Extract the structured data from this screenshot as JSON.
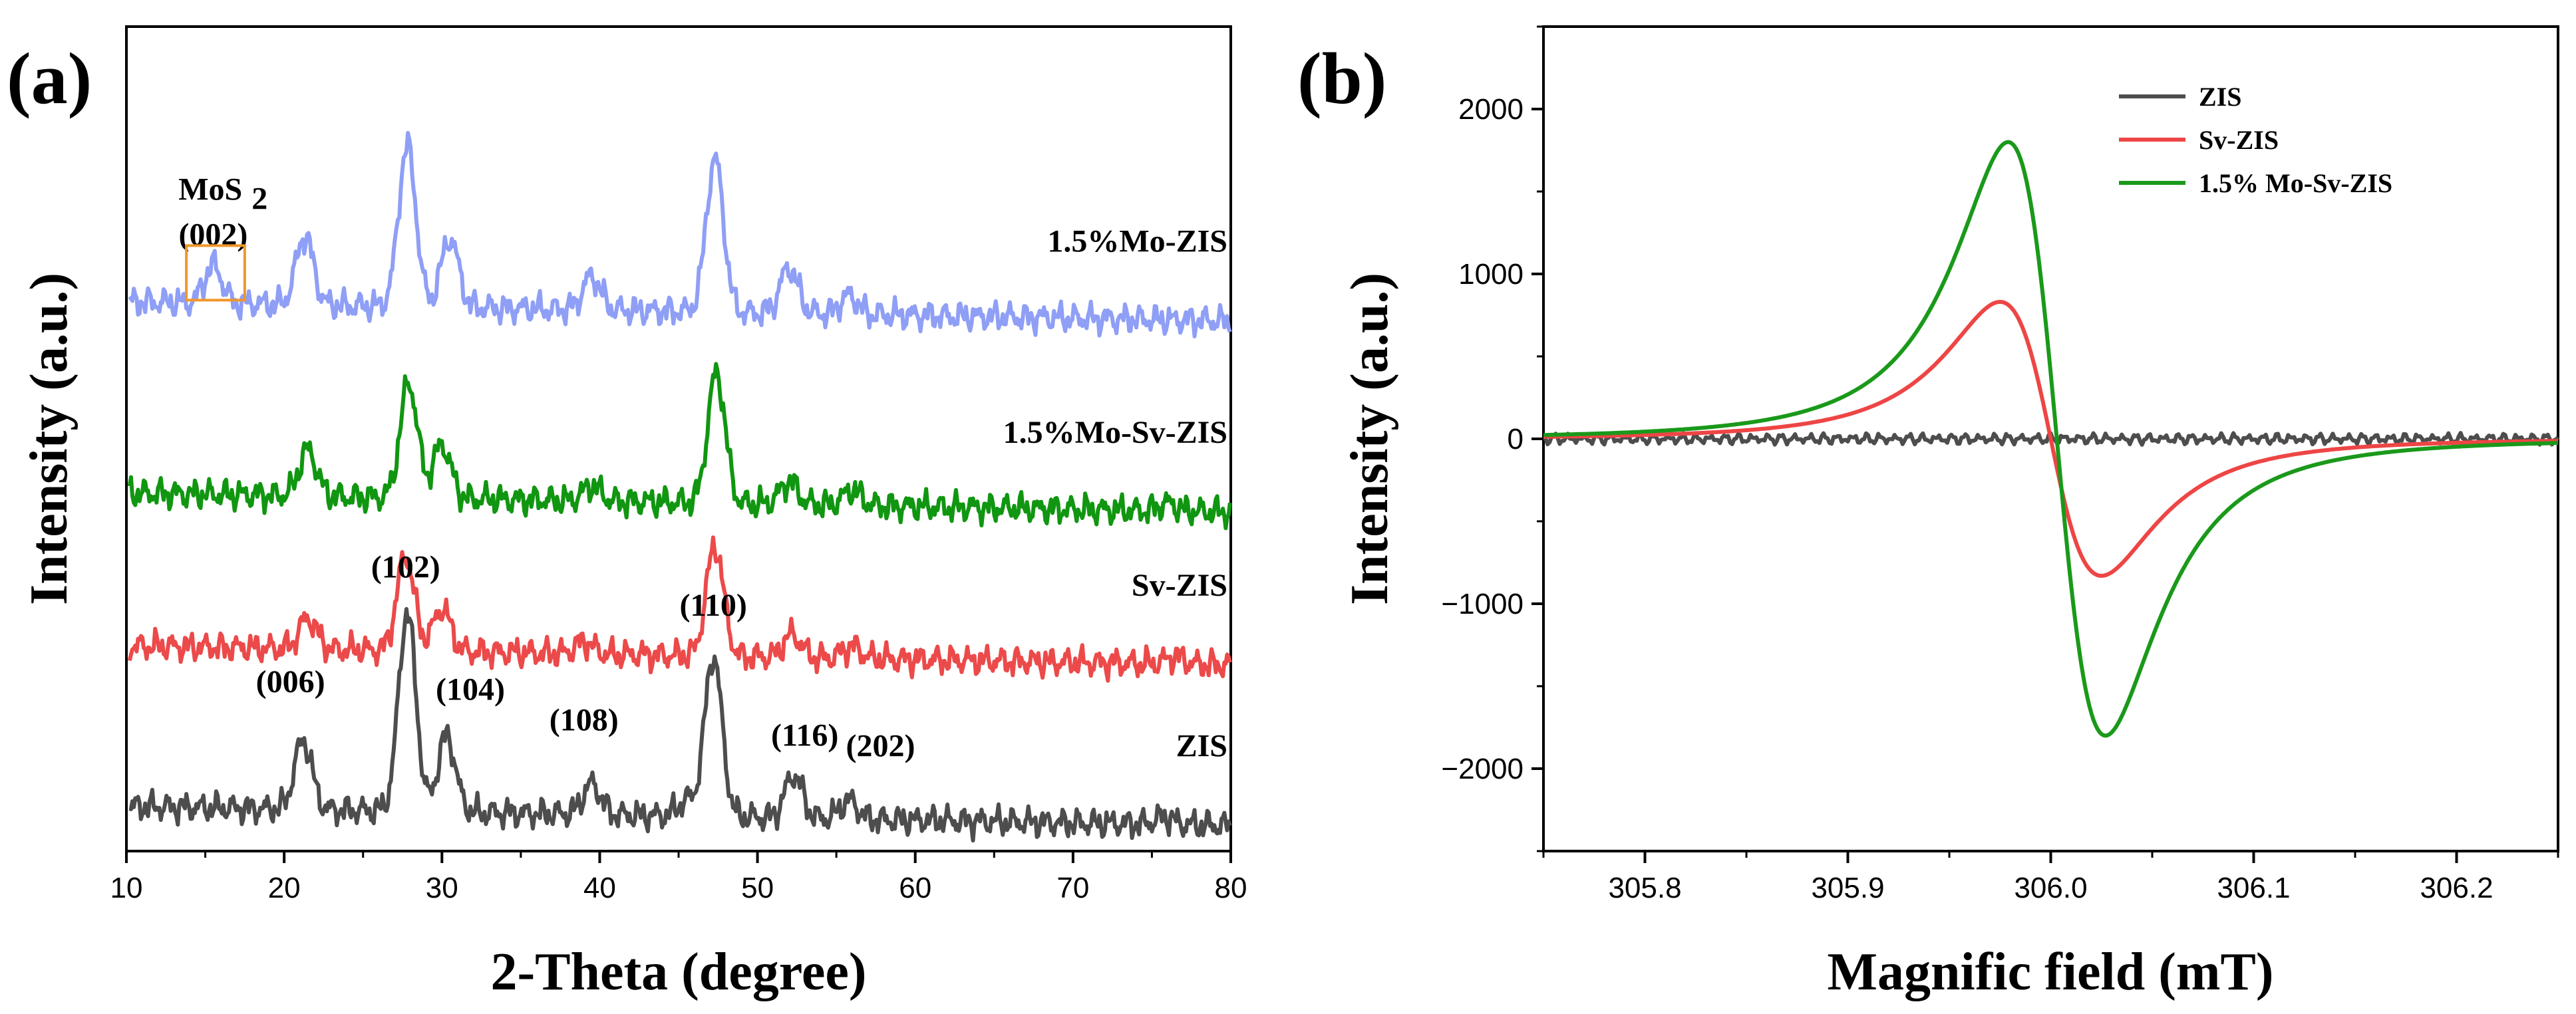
{
  "chart_data": [
    {
      "id": "a",
      "panel_label": "(a)",
      "type": "line",
      "xlabel": "2-Theta (degree)",
      "ylabel": "Intensity (a.u.)",
      "xlim": [
        10,
        80
      ],
      "xticks": [
        "10",
        "20",
        "30",
        "40",
        "50",
        "60",
        "70",
        "80"
      ],
      "series": [
        {
          "name": "1.5%Mo-ZIS",
          "color": "#8f9ff6",
          "baseline": 3.3,
          "peaks": [
            [
              15.5,
              0.25
            ],
            [
              21.3,
              0.45
            ],
            [
              27.8,
              1.05
            ],
            [
              30.5,
              0.45
            ],
            [
              39.5,
              0.22
            ],
            [
              47.3,
              1.0
            ],
            [
              52.0,
              0.3
            ],
            [
              55.8,
              0.12
            ]
          ]
        },
        {
          "name": "1.5%Mo-Sv-ZIS",
          "color": "#119611",
          "baseline": 2.05,
          "peaks": [
            [
              21.5,
              0.3
            ],
            [
              27.9,
              0.75
            ],
            [
              30.0,
              0.35
            ],
            [
              39.5,
              0.1
            ],
            [
              47.4,
              0.85
            ],
            [
              52.0,
              0.15
            ],
            [
              56.0,
              0.1
            ],
            [
              76.0,
              0.05
            ]
          ]
        },
        {
          "name": "Sv-ZIS",
          "color": "#ec4a4a",
          "baseline": 1.05,
          "peaks": [
            [
              21.5,
              0.2
            ],
            [
              27.7,
              0.62
            ],
            [
              30.0,
              0.28
            ],
            [
              39.0,
              0.08
            ],
            [
              47.3,
              0.72
            ],
            [
              52.2,
              0.15
            ],
            [
              56.0,
              0.08
            ],
            [
              76.5,
              0.05
            ]
          ]
        },
        {
          "name": "ZIS",
          "color": "#4d4d4d",
          "baseline": 0.0,
          "peaks": [
            [
              21.2,
              0.45
            ],
            [
              27.8,
              1.3
            ],
            [
              30.3,
              0.5
            ],
            [
              39.5,
              0.2
            ],
            [
              45.5,
              0.1
            ],
            [
              47.2,
              1.05
            ],
            [
              52.3,
              0.28
            ],
            [
              55.8,
              0.12
            ],
            [
              75.8,
              0.05
            ]
          ]
        }
      ],
      "annotations": {
        "mos2_main": "MoS",
        "mos2_sub": "2",
        "mos2_hkl": "(002)",
        "hkl": [
          "(102)",
          "(006)",
          "(104)",
          "(108)",
          "(110)",
          "(116)",
          "(202)"
        ],
        "hkl_x": [
          27.7,
          20.4,
          31.8,
          39.0,
          47.2,
          53.0,
          57.8
        ],
        "hkl_level": [
          1.55,
          0.8,
          0.75,
          0.55,
          1.3,
          0.45,
          0.38
        ]
      }
    },
    {
      "id": "b",
      "panel_label": "(b)",
      "type": "line",
      "xlabel": "Magnific field (mT)",
      "ylabel": "Intensity (a.u.)",
      "xlim": [
        305.75,
        306.25
      ],
      "ylim": [
        -2500,
        2500
      ],
      "xticks": [
        "305.8",
        "305.9",
        "306.0",
        "306.1",
        "306.2"
      ],
      "yticks": [
        "2000",
        "1000",
        "0",
        "−1000",
        "−2000"
      ],
      "legend_position": "top-right",
      "series": [
        {
          "name": "ZIS",
          "color": "#4d4d4d",
          "amplitude": 0
        },
        {
          "name": "Sv-ZIS",
          "color": "#ee4545",
          "amplitude": 960,
          "center": 306.0,
          "halfwidth": 0.025
        },
        {
          "name": "1.5% Mo-Sv-ZIS",
          "color": "#1a991a",
          "amplitude": 2080,
          "center": 306.003,
          "halfwidth": 0.024
        }
      ]
    }
  ]
}
